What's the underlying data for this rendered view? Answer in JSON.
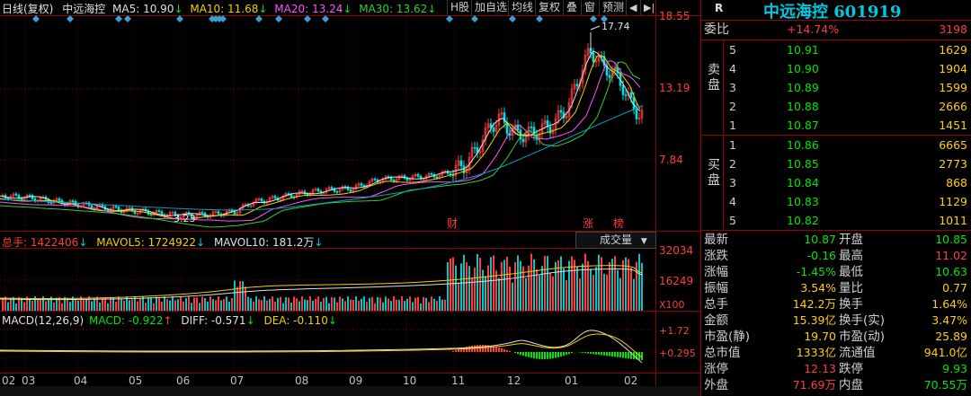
{
  "header": {
    "period": "日线(复权)",
    "name": "中远海控",
    "ma5": "MA5: 10.90",
    "ma10": "MA10: 11.68",
    "ma20": "MA20: 13.24",
    "ma30": "MA30: 13.62",
    "down_arrow": "↓"
  },
  "toolbar": [
    "H股",
    "加自选",
    "均线",
    "复权",
    "叠",
    "窗",
    "预测"
  ],
  "price_axis": {
    "high": "18.55",
    "mid": "13.19",
    "low": "7.84"
  },
  "price_annotations": {
    "peak": "17.74",
    "trough": "3.23"
  },
  "events": {
    "fin": "财",
    "zhang": "涨",
    "bang": "榜"
  },
  "volume_header": {
    "total": "总手: 1422406",
    "mavol5": "MAVOL5: 1724922",
    "mavol10": "MAVOL10: 181.2万",
    "arrow": "↓",
    "dropdown": "成交量",
    "axis_top": "32034",
    "axis_mid": "16249",
    "axis_unit": "X100"
  },
  "macd_header": {
    "title": "MACD(12,26,9)",
    "macd": "MACD: -0.922",
    "diff": "DIFF: -0.571",
    "dea": "DEA: -0.110",
    "up_arrow": "↑",
    "down_arrow": "↓",
    "axis_top": "+1.72",
    "axis_mid": "+0.295"
  },
  "months": [
    "02",
    "03",
    "04",
    "05",
    "06",
    "07",
    "08",
    "09",
    "10",
    "11",
    "12",
    "01",
    "02"
  ],
  "stock": {
    "mark": "R",
    "title": "中远海控 601919"
  },
  "weibi": {
    "label": "委比",
    "pct": "+14.74%",
    "diff": "3198"
  },
  "sell": {
    "label": "卖盘",
    "rows": [
      {
        "lvl": "5",
        "price": "10.91",
        "vol": "1629"
      },
      {
        "lvl": "4",
        "price": "10.90",
        "vol": "1904"
      },
      {
        "lvl": "3",
        "price": "10.89",
        "vol": "1599"
      },
      {
        "lvl": "2",
        "price": "10.88",
        "vol": "2666"
      },
      {
        "lvl": "1",
        "price": "10.87",
        "vol": "1451"
      }
    ]
  },
  "buy": {
    "label": "买盘",
    "rows": [
      {
        "lvl": "1",
        "price": "10.86",
        "vol": "6665"
      },
      {
        "lvl": "2",
        "price": "10.85",
        "vol": "2773"
      },
      {
        "lvl": "3",
        "price": "10.84",
        "vol": "868"
      },
      {
        "lvl": "4",
        "price": "10.83",
        "vol": "1129"
      },
      {
        "lvl": "5",
        "price": "10.82",
        "vol": "1011"
      }
    ]
  },
  "stats": [
    {
      "l1": "最新",
      "v1": "10.87",
      "l2": "开盘",
      "v2": "10.85"
    },
    {
      "l1": "涨跌",
      "v1": "-0.16",
      "l2": "最高",
      "v2": "11.02"
    },
    {
      "l1": "涨幅",
      "v1": "-1.45%",
      "l2": "最低",
      "v2": "10.63"
    },
    {
      "l1": "振幅",
      "v1": "3.54%",
      "l2": "量比",
      "v2": "0.77"
    },
    {
      "l1": "总手",
      "v1": "142.2万",
      "l2": "换手",
      "v2": "1.64%"
    },
    {
      "l1": "金额",
      "v1": "15.39亿",
      "l2": "换手(实)",
      "v2": "3.47%"
    },
    {
      "l1": "市盈(静)",
      "v1": "19.70",
      "l2": "市盈(动)",
      "v2": "25.89"
    },
    {
      "l1": "总市值",
      "v1": "1333亿",
      "l2": "流通值",
      "v2": "941.0亿"
    },
    {
      "l1": "涨停",
      "v1": "12.13",
      "l2": "跌停",
      "v2": "9.93"
    },
    {
      "l1": "外盘",
      "v1": "71.69万",
      "l2": "内盘",
      "v2": "70.55万"
    }
  ],
  "colors": {
    "up": "#ff3c3c",
    "down": "#00e600",
    "grid": "#8b0000",
    "ma5": "#e0e0e0",
    "ma10": "#f0d000",
    "ma20": "#ff50ff",
    "ma30": "#30d030",
    "accent": "#00c8e0"
  }
}
